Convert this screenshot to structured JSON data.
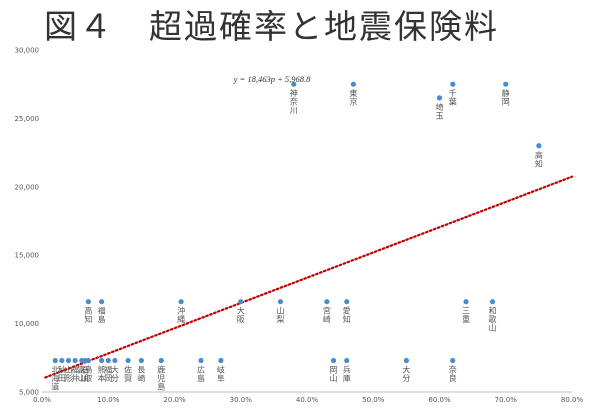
{
  "title": "図４　超過確率と地震保険料",
  "chart_data": {
    "type": "scatter",
    "xlim": [
      0,
      0.8
    ],
    "ylim": [
      5000,
      30000
    ],
    "x_ticks": [
      0,
      0.1,
      0.2,
      0.3,
      0.4,
      0.5,
      0.6,
      0.7,
      0.8
    ],
    "x_tick_labels": [
      "0.0%",
      "10.0%",
      "20.0%",
      "30.0%",
      "40.0%",
      "50.0%",
      "60.0%",
      "70.0%",
      "80.0%"
    ],
    "y_ticks": [
      5000,
      10000,
      15000,
      20000,
      25000,
      30000
    ],
    "y_tick_labels": [
      "5,000",
      "10,000",
      "15,000",
      "20,000",
      "25,000",
      "30,000"
    ],
    "grid": false,
    "marker_color": "#4a8ccb",
    "trendline": {
      "equation": "y = 18,463p + 5,968.8",
      "slope": 18463,
      "intercept": 5968.8,
      "color": "#c00000",
      "style": "dotted"
    },
    "points": [
      {
        "x": 0.02,
        "y": 7300,
        "label": "北海道"
      },
      {
        "x": 0.03,
        "y": 7300,
        "label": "秋田"
      },
      {
        "x": 0.04,
        "y": 7300,
        "label": "山形"
      },
      {
        "x": 0.05,
        "y": 7300,
        "label": "福井"
      },
      {
        "x": 0.06,
        "y": 7300,
        "label": "富山"
      },
      {
        "x": 0.065,
        "y": 7300,
        "label": "石川"
      },
      {
        "x": 0.07,
        "y": 7300,
        "label": "鳥取"
      },
      {
        "x": 0.09,
        "y": 7300,
        "label": "熊本"
      },
      {
        "x": 0.1,
        "y": 7300,
        "label": "福岡"
      },
      {
        "x": 0.11,
        "y": 7300,
        "label": "大分"
      },
      {
        "x": 0.13,
        "y": 7300,
        "label": "佐賀"
      },
      {
        "x": 0.15,
        "y": 7300,
        "label": "長崎"
      },
      {
        "x": 0.18,
        "y": 7300,
        "label": "鹿児島"
      },
      {
        "x": 0.07,
        "y": 11600,
        "label": "高知"
      },
      {
        "x": 0.09,
        "y": 11600,
        "label": "福島"
      },
      {
        "x": 0.21,
        "y": 11600,
        "label": "沖縄"
      },
      {
        "x": 0.24,
        "y": 7300,
        "label": "広島"
      },
      {
        "x": 0.27,
        "y": 7300,
        "label": "岐阜"
      },
      {
        "x": 0.3,
        "y": 11600,
        "label": "大阪"
      },
      {
        "x": 0.36,
        "y": 11600,
        "label": "山梨"
      },
      {
        "x": 0.43,
        "y": 11600,
        "label": "宮崎"
      },
      {
        "x": 0.46,
        "y": 11600,
        "label": "愛知"
      },
      {
        "x": 0.44,
        "y": 7300,
        "label": "岡山"
      },
      {
        "x": 0.46,
        "y": 7300,
        "label": "兵庫"
      },
      {
        "x": 0.55,
        "y": 7300,
        "label": "大分"
      },
      {
        "x": 0.62,
        "y": 7300,
        "label": "奈良"
      },
      {
        "x": 0.64,
        "y": 11600,
        "label": "三重"
      },
      {
        "x": 0.68,
        "y": 11600,
        "label": "和歌山"
      },
      {
        "x": 0.38,
        "y": 27500,
        "label": "神奈川"
      },
      {
        "x": 0.47,
        "y": 27500,
        "label": "東京"
      },
      {
        "x": 0.6,
        "y": 26500,
        "label": "埼玉"
      },
      {
        "x": 0.62,
        "y": 27500,
        "label": "千葉"
      },
      {
        "x": 0.7,
        "y": 27500,
        "label": "静岡"
      },
      {
        "x": 0.75,
        "y": 23000,
        "label": "高知"
      }
    ]
  }
}
